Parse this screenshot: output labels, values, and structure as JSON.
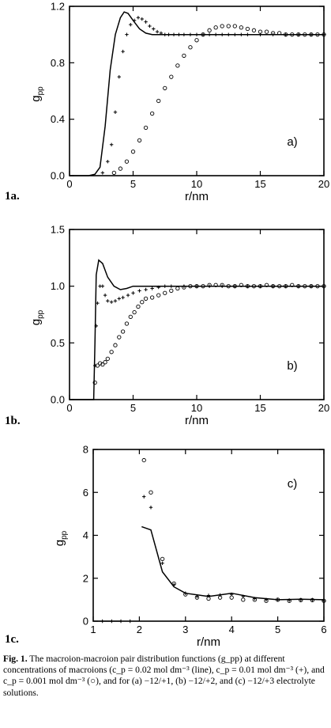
{
  "chart_data": [
    {
      "id": "1a",
      "panel_label": "1a.",
      "type": "scatter",
      "xlabel": "r/nm",
      "ylabel": "g_pp",
      "annotation": "a)",
      "xlim": [
        0,
        20
      ],
      "ylim": [
        0,
        1.2
      ],
      "xticks": [
        "0",
        "5",
        "10",
        "15",
        "20"
      ],
      "yticks": [
        "0.0",
        "0.4",
        "0.8",
        "1.2"
      ],
      "series": [
        {
          "style": "line",
          "x": [
            0,
            1.5,
            2.0,
            2.4,
            2.8,
            3.2,
            3.6,
            4.0,
            4.3,
            4.6,
            5.0,
            5.5,
            6.0,
            6.5,
            7.0,
            8.0,
            9,
            10,
            12,
            14,
            16,
            18,
            20
          ],
          "y": [
            0,
            0,
            0.01,
            0.06,
            0.35,
            0.75,
            1.0,
            1.12,
            1.16,
            1.15,
            1.1,
            1.04,
            1.01,
            1.0,
            1.0,
            1.0,
            1.0,
            1.0,
            1.0,
            1.0,
            1.0,
            1.0,
            1.0
          ]
        },
        {
          "style": "plus",
          "x": [
            2.6,
            3.0,
            3.3,
            3.6,
            3.9,
            4.2,
            4.5,
            4.8,
            5.1,
            5.4,
            5.7,
            6.0,
            6.3,
            6.6,
            6.9,
            7.2,
            7.5,
            7.8,
            8.2,
            8.6,
            9.0,
            9.5,
            10,
            10.5,
            11,
            11.5,
            12,
            12.5,
            13,
            13.5,
            14,
            15,
            16,
            17,
            18,
            19,
            20
          ],
          "y": [
            0.02,
            0.1,
            0.22,
            0.45,
            0.7,
            0.88,
            1.0,
            1.07,
            1.1,
            1.12,
            1.11,
            1.09,
            1.06,
            1.04,
            1.02,
            1.01,
            1.0,
            1.0,
            1.0,
            1.0,
            1.0,
            1.0,
            1.0,
            1.0,
            1.0,
            1.0,
            1.0,
            1.0,
            1.0,
            1.0,
            1.0,
            1.0,
            1.0,
            1.0,
            1.0,
            1.0,
            1.0
          ]
        },
        {
          "style": "circle",
          "x": [
            3.5,
            4.0,
            4.5,
            5.0,
            5.5,
            6.0,
            6.5,
            7.0,
            7.5,
            8.0,
            8.5,
            9.0,
            9.5,
            10.0,
            10.5,
            11.0,
            11.5,
            12.0,
            12.5,
            13.0,
            13.5,
            14.0,
            14.5,
            15.0,
            15.5,
            16.0,
            16.5,
            17.0,
            17.5,
            18.0,
            18.5,
            19.0,
            19.5,
            20.0
          ],
          "y": [
            0.02,
            0.05,
            0.1,
            0.17,
            0.25,
            0.34,
            0.44,
            0.53,
            0.62,
            0.7,
            0.78,
            0.85,
            0.91,
            0.96,
            1.0,
            1.03,
            1.05,
            1.06,
            1.06,
            1.06,
            1.05,
            1.04,
            1.03,
            1.02,
            1.02,
            1.01,
            1.01,
            1.0,
            1.0,
            1.0,
            1.0,
            1.0,
            1.0,
            1.0
          ]
        }
      ]
    },
    {
      "id": "1b",
      "panel_label": "1b.",
      "type": "scatter",
      "xlabel": "r/nm",
      "ylabel": "g_pp",
      "annotation": "b)",
      "xlim": [
        0,
        20
      ],
      "ylim": [
        0,
        1.5
      ],
      "xticks": [
        "0",
        "5",
        "10",
        "15",
        "20"
      ],
      "yticks": [
        "0.0",
        "0.5",
        "1.0",
        "1.5"
      ],
      "series": [
        {
          "style": "line",
          "x": [
            0,
            1.9,
            2.0,
            2.1,
            2.3,
            2.6,
            3.0,
            3.5,
            4.0,
            4.5,
            5.0,
            6,
            8,
            10,
            12,
            14,
            16,
            18,
            20
          ],
          "y": [
            0,
            0,
            0.5,
            1.1,
            1.23,
            1.2,
            1.08,
            1.0,
            0.97,
            0.98,
            1.0,
            1.0,
            1.0,
            1.0,
            1.0,
            1.0,
            1.0,
            1.0,
            1.0
          ]
        },
        {
          "style": "plus",
          "x": [
            2.0,
            2.1,
            2.2,
            2.4,
            2.6,
            2.8,
            3.0,
            3.3,
            3.6,
            3.9,
            4.2,
            4.6,
            5.0,
            5.5,
            6.0,
            6.5,
            7.0,
            7.5,
            8.0,
            9,
            10,
            11,
            12,
            13,
            14,
            15,
            16,
            17,
            18,
            19,
            20
          ],
          "y": [
            0.3,
            0.65,
            0.85,
            1.0,
            1.0,
            0.92,
            0.87,
            0.86,
            0.87,
            0.89,
            0.9,
            0.92,
            0.94,
            0.96,
            0.97,
            0.98,
            0.99,
            1.0,
            1.0,
            1.0,
            1.0,
            1.0,
            1.0,
            1.0,
            1.0,
            1.0,
            1.0,
            1.0,
            1.0,
            1.0,
            1.0
          ]
        },
        {
          "style": "circle",
          "x": [
            2.0,
            2.2,
            2.4,
            2.6,
            2.8,
            3.0,
            3.3,
            3.6,
            3.9,
            4.2,
            4.5,
            4.8,
            5.1,
            5.4,
            5.7,
            6.0,
            6.5,
            7.0,
            7.5,
            8.0,
            8.5,
            9.0,
            9.5,
            10,
            10.5,
            11,
            11.5,
            12,
            12.5,
            13,
            13.5,
            14,
            14.5,
            15,
            15.5,
            16,
            16.5,
            17,
            17.5,
            18,
            18.5,
            19,
            19.5,
            20
          ],
          "y": [
            0.15,
            0.3,
            0.32,
            0.31,
            0.33,
            0.36,
            0.42,
            0.48,
            0.55,
            0.6,
            0.67,
            0.73,
            0.77,
            0.82,
            0.86,
            0.89,
            0.9,
            0.92,
            0.94,
            0.96,
            0.98,
            0.99,
            1.0,
            1.0,
            1.0,
            1.01,
            1.01,
            1.01,
            1.0,
            1.0,
            1.01,
            1.0,
            1.0,
            1.0,
            1.01,
            1.0,
            1.0,
            1.0,
            1.01,
            1.0,
            1.0,
            1.0,
            1.0,
            1.0
          ]
        }
      ]
    },
    {
      "id": "1c",
      "panel_label": "1c.",
      "type": "scatter",
      "xlabel": "r/nm",
      "ylabel": "g_pp",
      "annotation": "c)",
      "xlim": [
        1,
        6
      ],
      "ylim": [
        0,
        8
      ],
      "xticks": [
        "1",
        "2",
        "3",
        "4",
        "5",
        "6"
      ],
      "yticks": [
        "0",
        "2",
        "4",
        "6",
        "8"
      ],
      "series": [
        {
          "style": "line",
          "x": [
            2.05,
            2.25,
            2.5,
            2.75,
            3.0,
            3.5,
            4.0,
            4.5,
            5.0,
            5.5,
            6.0
          ],
          "y": [
            4.4,
            4.25,
            2.3,
            1.6,
            1.3,
            1.15,
            1.3,
            1.1,
            1.0,
            1.02,
            1.0
          ],
          "extra_x": [
            1,
            1.6
          ],
          "extra_y": [
            0,
            0
          ]
        },
        {
          "style": "plus",
          "x": [
            2.1,
            2.25,
            2.5,
            2.75,
            3.0,
            3.25,
            3.5,
            3.75,
            4.0,
            4.25,
            4.5,
            4.75,
            5.0,
            5.25,
            5.5,
            5.75,
            6.0
          ],
          "y": [
            5.8,
            5.3,
            2.7,
            1.7,
            1.3,
            1.15,
            1.2,
            1.22,
            1.25,
            1.15,
            1.05,
            1.0,
            1.0,
            0.98,
            1.0,
            1.0,
            0.95
          ],
          "extra_x": [
            1.2,
            1.4,
            1.6,
            1.8
          ],
          "extra_y": [
            0,
            0,
            0,
            0
          ]
        },
        {
          "style": "circle",
          "x": [
            2.1,
            2.25,
            2.5,
            2.75,
            3.0,
            3.25,
            3.5,
            3.75,
            4.0,
            4.25,
            4.5,
            4.75,
            5.0,
            5.25,
            5.5,
            5.75,
            6.0
          ],
          "y": [
            7.5,
            6.0,
            2.9,
            1.75,
            1.25,
            1.1,
            1.05,
            1.1,
            1.1,
            1.0,
            1.0,
            0.95,
            1.0,
            0.95,
            0.98,
            0.98,
            0.95
          ]
        }
      ]
    }
  ],
  "caption": {
    "fig_label": "Fig. 1.",
    "text": " The macroion-macroion pair distribution functions (g_pp) at different concentrations of macroions (c_p = 0.02 mol dm⁻³ (line), c_p = 0.01 mol dm⁻³ (+), and c_p = 0.001 mol dm⁻³ (○), and for (a) −12/+1, (b) −12/+2, and (c) −12/+3 electrolyte solutions."
  }
}
